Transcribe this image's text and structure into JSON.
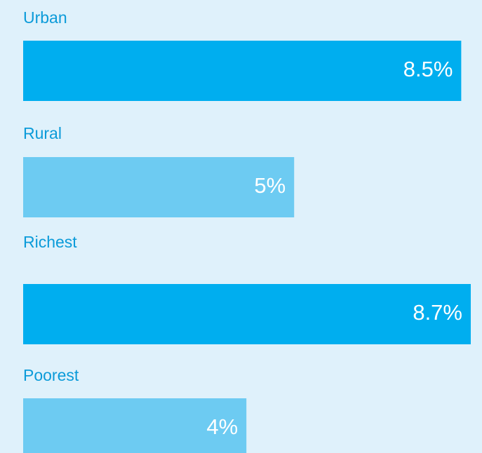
{
  "chart_data": {
    "type": "bar",
    "orientation": "horizontal",
    "categories": [
      "Urban",
      "Rural",
      "Richest",
      "Poorest"
    ],
    "values": [
      8.5,
      5,
      8.7,
      4
    ],
    "value_labels": [
      "8.5%",
      "5%",
      "8.7%",
      "4%"
    ],
    "colors": [
      "#00aeef",
      "#6dcbf2",
      "#00aeef",
      "#6dcbf2"
    ]
  }
}
